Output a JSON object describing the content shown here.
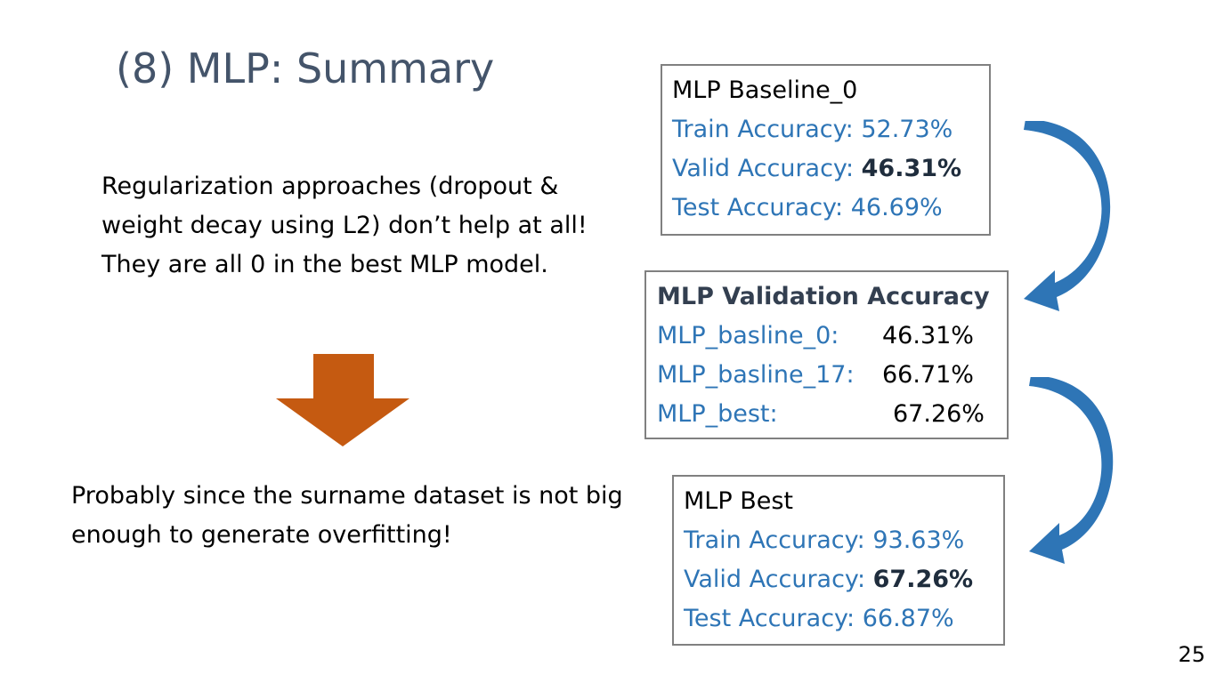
{
  "slide": {
    "title": "(8) MLP: Summary",
    "page_number": "25"
  },
  "left": {
    "regularization_text": "Regularization approaches (dropout & weight decay using L2) don’t help at all! They are all 0 in the best MLP model.",
    "conclusion_text": "Probably since the surname dataset is not big enough to generate overfitting!"
  },
  "baseline_box": {
    "title": "MLP Baseline_0",
    "train_label": "Train Accuracy: ",
    "train_value": "52.73%",
    "valid_label": "Valid Accuracy: ",
    "valid_value": "46.31%",
    "test_label": "Test  Accuracy: ",
    "test_value": "46.69%"
  },
  "validation_box": {
    "title": "MLP Validation Accuracy",
    "rows": [
      {
        "label": "MLP_basline_0:",
        "value": "46.31%"
      },
      {
        "label": "MLP_basline_17:",
        "value": "66.71%"
      },
      {
        "label": "MLP_best:",
        "value": "67.26%"
      }
    ]
  },
  "best_box": {
    "title": "MLP Best",
    "train_label": "Train Accuracy: ",
    "train_value": "93.63%",
    "valid_label": "Valid Accuracy: ",
    "valid_value": "67.26%",
    "test_label": "Test  Accuracy: ",
    "test_value": "66.87%"
  },
  "colors": {
    "title": "#44546a",
    "accent_blue": "#2e75b6",
    "arrow_orange": "#c55a11",
    "curve_blue": "#2e75b6"
  }
}
